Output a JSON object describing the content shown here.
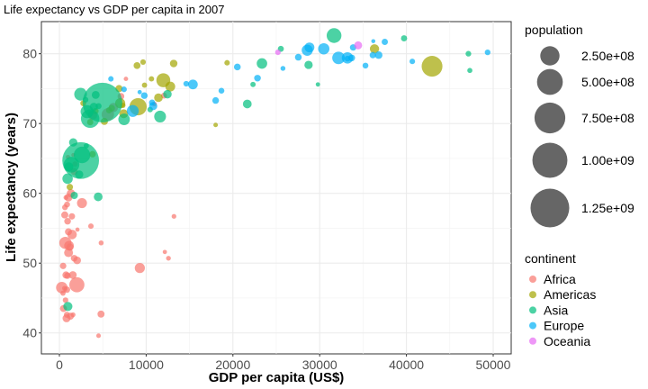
{
  "chart_data": {
    "type": "scatter",
    "title": "Life expectancy vs GDP per capita in 2007",
    "xlabel": "GDP per capita (US$)",
    "ylabel": "Life expectancy (years)",
    "xlim": [
      -2075,
      52075
    ],
    "ylim": [
      37.0,
      84.6
    ],
    "x_ticks": [
      0,
      10000,
      20000,
      30000,
      40000,
      50000
    ],
    "x_tick_labels": [
      "0",
      "10000",
      "20000",
      "30000",
      "40000",
      "50000"
    ],
    "y_ticks": [
      40,
      50,
      60,
      70,
      80
    ],
    "y_tick_labels": [
      "40",
      "50",
      "60",
      "70",
      "80"
    ],
    "grid": true,
    "point_alpha": 0.7,
    "size_legend": {
      "title": "population",
      "breaks": [
        250000000,
        500000000,
        750000000,
        1000000000,
        1250000000
      ],
      "labels": [
        "2.50e+08",
        "5.00e+08",
        "7.50e+08",
        "1.00e+09",
        "1.25e+09"
      ]
    },
    "color_legend": {
      "title": "continent",
      "placement": "right",
      "entries": [
        {
          "name": "Africa",
          "color": "#F8766D"
        },
        {
          "name": "Americas",
          "color": "#A3A500"
        },
        {
          "name": "Asia",
          "color": "#00BF7D"
        },
        {
          "name": "Europe",
          "color": "#00B0F6"
        },
        {
          "name": "Oceania",
          "color": "#E76BF3"
        }
      ]
    },
    "point_fields": [
      "gdpPercap",
      "lifeExp",
      "pop"
    ],
    "series": [
      {
        "name": "Africa",
        "points": [
          [
            6223,
            72.3,
            33300000.0
          ],
          [
            4797,
            42.7,
            12400000.0
          ],
          [
            1441,
            56.7,
            8100000.0
          ],
          [
            12570,
            50.7,
            1600000.0
          ],
          [
            1217,
            52.3,
            14300000.0
          ],
          [
            430,
            49.6,
            8400000.0
          ],
          [
            2042,
            50.4,
            17700000.0
          ],
          [
            706,
            44.7,
            4400000.0
          ],
          [
            1704,
            50.7,
            10200000.0
          ],
          [
            986,
            65.2,
            700000.0
          ],
          [
            278,
            46.5,
            64600000.0
          ],
          [
            3633,
            55.3,
            3800000.0
          ],
          [
            1545,
            48.3,
            18000000.0
          ],
          [
            2082,
            54.8,
            500000.0
          ],
          [
            5581,
            71.3,
            80300000.0
          ],
          [
            12154,
            51.6,
            550000.0
          ],
          [
            641,
            58.0,
            4900000.0
          ],
          [
            691,
            52.9,
            76500000.0
          ],
          [
            13206,
            56.7,
            1450000.0
          ],
          [
            753,
            59.4,
            1700000.0
          ],
          [
            1328,
            60.0,
            22900000.0
          ],
          [
            943,
            56.0,
            9900000.0
          ],
          [
            579,
            46.4,
            1500000.0
          ],
          [
            1463,
            54.1,
            35600000.0
          ],
          [
            1569,
            42.6,
            2000000.0
          ],
          [
            415,
            45.7,
            3200000.0
          ],
          [
            12057,
            74.0,
            6000000.0
          ],
          [
            1045,
            59.4,
            19200000.0
          ],
          [
            759,
            48.3,
            13300000.0
          ],
          [
            1042,
            54.5,
            12000000.0
          ],
          [
            1803,
            64.2,
            3300000.0
          ],
          [
            10957,
            72.8,
            1250000.0
          ],
          [
            3820,
            71.2,
            33800000.0
          ],
          [
            824,
            42.1,
            20000000.0
          ],
          [
            4811,
            52.9,
            2100000.0
          ],
          [
            620,
            56.9,
            12900000.0
          ],
          [
            2014,
            46.9,
            135000000.0
          ],
          [
            7670,
            76.4,
            800000.0
          ],
          [
            863,
            46.2,
            8900000.0
          ],
          [
            1598,
            65.5,
            200000.0
          ],
          [
            1712,
            63.1,
            12300000.0
          ],
          [
            863,
            42.6,
            6100000.0
          ],
          [
            926,
            48.2,
            9100000.0
          ],
          [
            9270,
            49.3,
            44000000.0
          ],
          [
            2602,
            58.6,
            42300000.0
          ],
          [
            4513,
            39.6,
            1100000.0
          ],
          [
            1107,
            52.5,
            38100000.0
          ],
          [
            883,
            58.4,
            5700000.0
          ],
          [
            7093,
            73.9,
            10300000.0
          ],
          [
            1056,
            51.5,
            29200000.0
          ],
          [
            1271,
            42.4,
            11700000.0
          ],
          [
            470,
            43.5,
            12300000.0
          ]
        ]
      },
      {
        "name": "Americas",
        "points": [
          [
            12779,
            75.3,
            40300000.0
          ],
          [
            3822,
            65.6,
            9100000.0
          ],
          [
            9066,
            72.4,
            190000000.0
          ],
          [
            36319,
            80.7,
            33400000.0
          ],
          [
            13172,
            78.6,
            16300000.0
          ],
          [
            7007,
            72.9,
            44200000.0
          ],
          [
            9645,
            78.8,
            4100000.0
          ],
          [
            8948,
            78.3,
            11400000.0
          ],
          [
            6025,
            72.2,
            9300000.0
          ],
          [
            6873,
            75.0,
            13800000.0
          ],
          [
            5728,
            71.9,
            6900000.0
          ],
          [
            5186,
            70.3,
            12600000.0
          ],
          [
            1202,
            60.9,
            8500000.0
          ],
          [
            3548,
            70.2,
            7500000.0
          ],
          [
            7321,
            72.6,
            2800000.0
          ],
          [
            11978,
            76.2,
            108700000.0
          ],
          [
            2749,
            72.9,
            5700000.0
          ],
          [
            9809,
            75.5,
            3200000.0
          ],
          [
            4173,
            71.8,
            6700000.0
          ],
          [
            7409,
            71.4,
            28700000.0
          ],
          [
            19329,
            78.7,
            3900000.0
          ],
          [
            18009,
            69.8,
            1060000.0
          ],
          [
            42952,
            78.2,
            301000000.0
          ],
          [
            10611,
            76.4,
            3400000.0
          ],
          [
            11416,
            73.7,
            26100000.0
          ]
        ]
      },
      {
        "name": "Asia",
        "points": [
          [
            975,
            43.8,
            31900000.0
          ],
          [
            29796,
            75.6,
            700000.0
          ],
          [
            1391,
            64.1,
            150000000.0
          ],
          [
            1714,
            59.7,
            14100000.0
          ],
          [
            4959,
            73.0,
            1318700000.0
          ],
          [
            39725,
            82.2,
            6980000.0
          ],
          [
            2452,
            64.7,
            1110000000.0
          ],
          [
            3541,
            70.7,
            223500000.0
          ],
          [
            11606,
            71.0,
            69500000.0
          ],
          [
            4471,
            59.5,
            27500000.0
          ],
          [
            25523,
            80.7,
            6400000.0
          ],
          [
            31656,
            82.6,
            127500000.0
          ],
          [
            4519,
            72.5,
            6050000.0
          ],
          [
            1593,
            67.3,
            23300000.0
          ],
          [
            23348,
            78.6,
            49000000.0
          ],
          [
            47307,
            77.6,
            2500000.0
          ],
          [
            10461,
            72.0,
            3900000.0
          ],
          [
            12452,
            74.2,
            24800000.0
          ],
          [
            3096,
            66.8,
            2900000.0
          ],
          [
            944,
            62.1,
            47800000.0
          ],
          [
            1091,
            63.8,
            28900000.0
          ],
          [
            22316,
            75.6,
            3200000.0
          ],
          [
            2606,
            65.5,
            169000000.0
          ],
          [
            3190,
            71.7,
            91100000.0
          ],
          [
            21655,
            72.8,
            27600000.0
          ],
          [
            47143,
            80.0,
            4550000.0
          ],
          [
            3970,
            72.4,
            20400000.0
          ],
          [
            4185,
            74.1,
            19300000.0
          ],
          [
            28718,
            78.4,
            23200000.0
          ],
          [
            7458,
            70.6,
            65100000.0
          ],
          [
            2442,
            74.2,
            85300000.0
          ],
          [
            3025,
            73.4,
            4000000.0
          ],
          [
            2281,
            62.7,
            22200000.0
          ]
        ]
      },
      {
        "name": "Europe",
        "points": [
          [
            5937,
            76.4,
            3600000.0
          ],
          [
            36126,
            79.8,
            8200000.0
          ],
          [
            33693,
            79.4,
            10400000.0
          ],
          [
            7446,
            74.9,
            4550000.0
          ],
          [
            10681,
            73.0,
            7300000.0
          ],
          [
            14619,
            75.7,
            4500000.0
          ],
          [
            22833,
            76.5,
            10200000.0
          ],
          [
            35278,
            78.3,
            5500000.0
          ],
          [
            33207,
            79.3,
            5200000.0
          ],
          [
            30470,
            80.7,
            61100000.0
          ],
          [
            32170,
            79.4,
            82400000.0
          ],
          [
            27538,
            79.5,
            10700000.0
          ],
          [
            18009,
            73.3,
            9960000.0
          ],
          [
            36181,
            81.8,
            300000.0
          ],
          [
            40676,
            78.9,
            4100000.0
          ],
          [
            28570,
            80.5,
            58100000.0
          ],
          [
            9254,
            74.5,
            680000.0
          ],
          [
            36798,
            79.8,
            16600000.0
          ],
          [
            49357,
            80.2,
            4600000.0
          ],
          [
            15390,
            75.6,
            38500000.0
          ],
          [
            20510,
            78.1,
            10600000.0
          ],
          [
            10808,
            72.5,
            22300000.0
          ],
          [
            9787,
            74.0,
            10200000.0
          ],
          [
            18678,
            74.7,
            5400000.0
          ],
          [
            25768,
            77.9,
            2000000.0
          ],
          [
            28821,
            80.9,
            40400000.0
          ],
          [
            33860,
            80.9,
            9000000.0
          ],
          [
            37506,
            81.7,
            7550000.0
          ],
          [
            8458,
            71.8,
            71200000.0
          ],
          [
            33203,
            79.4,
            60800000.0
          ]
        ]
      },
      {
        "name": "Oceania",
        "points": [
          [
            34435,
            81.2,
            20400000.0
          ],
          [
            25185,
            80.2,
            4100000.0
          ]
        ]
      }
    ]
  }
}
